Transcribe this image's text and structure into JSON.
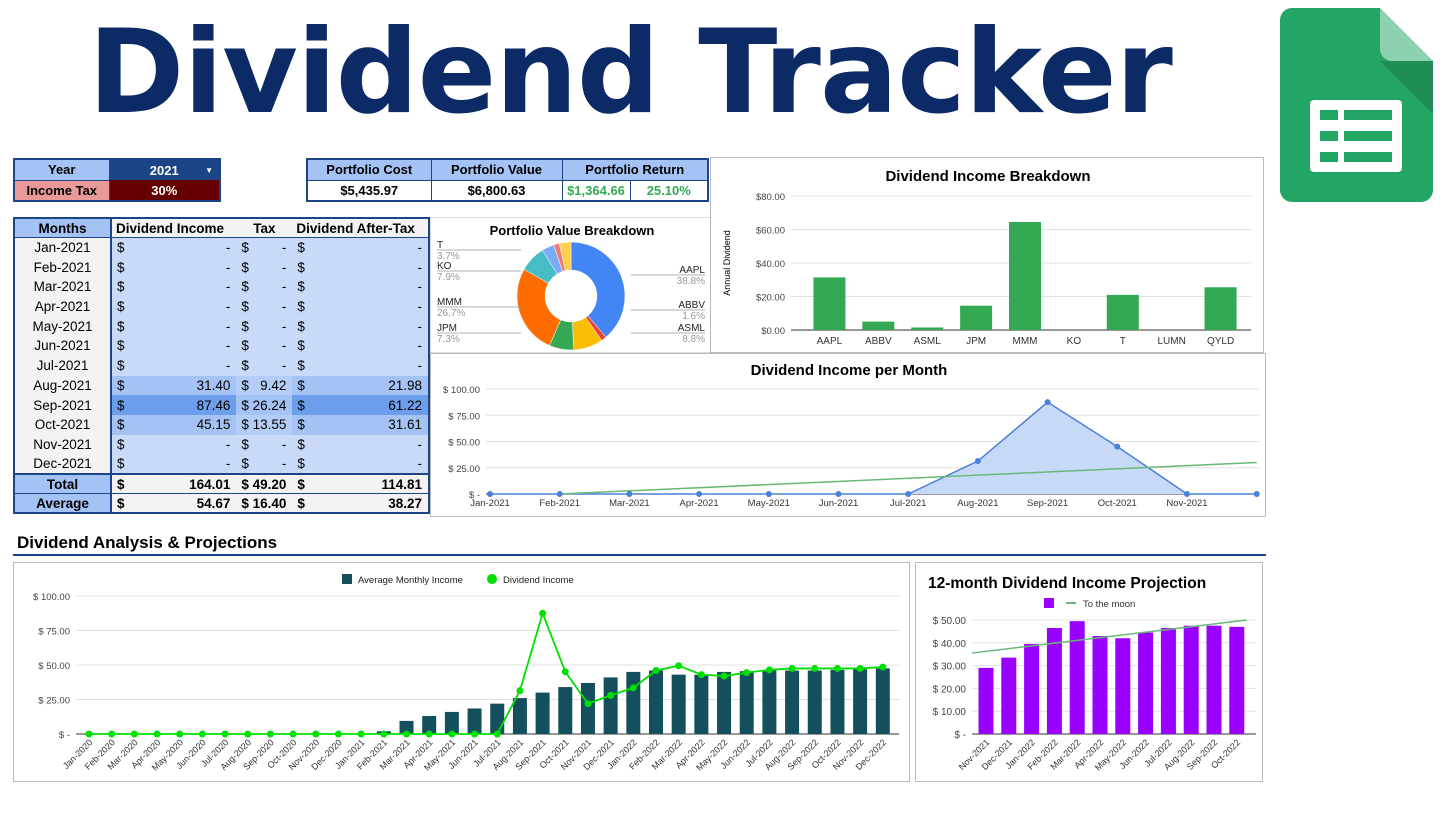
{
  "title": "Dividend Tracker",
  "settings": {
    "year_label": "Year",
    "year_value": "2021",
    "tax_label": "Income Tax",
    "tax_value": "30%"
  },
  "portfolio": {
    "cost_label": "Portfolio Cost",
    "cost": "$5,435.97",
    "value_label": "Portfolio Value",
    "value": "$6,800.63",
    "return_label": "Portfolio Return",
    "return_amount": "$1,364.66",
    "return_pct": "25.10%"
  },
  "months_table": {
    "headers": [
      "Months",
      "Dividend Income",
      "Tax",
      "Dividend After-Tax"
    ],
    "currency": "$",
    "rows": [
      [
        "Jan-2021",
        "-",
        "-",
        "-"
      ],
      [
        "Feb-2021",
        "-",
        "-",
        "-"
      ],
      [
        "Mar-2021",
        "-",
        "-",
        "-"
      ],
      [
        "Apr-2021",
        "-",
        "-",
        "-"
      ],
      [
        "May-2021",
        "-",
        "-",
        "-"
      ],
      [
        "Jun-2021",
        "-",
        "-",
        "-"
      ],
      [
        "Jul-2021",
        "-",
        "-",
        "-"
      ],
      [
        "Aug-2021",
        "31.40",
        "9.42",
        "21.98"
      ],
      [
        "Sep-2021",
        "87.46",
        "26.24",
        "61.22"
      ],
      [
        "Oct-2021",
        "45.15",
        "13.55",
        "31.61"
      ],
      [
        "Nov-2021",
        "-",
        "-",
        "-"
      ],
      [
        "Dec-2021",
        "-",
        "-",
        "-"
      ]
    ],
    "total": [
      "Total",
      "164.01",
      "49.20",
      "114.81"
    ],
    "average": [
      "Average",
      "54.67",
      "16.40",
      "38.27"
    ]
  },
  "section_heading": "Dividend Analysis & Projections",
  "colors": {
    "navy": "#0b2a66",
    "header_blue": "#a4c2f4",
    "cell_blue": "#c9daf8",
    "return_green": "#34a853",
    "tax_red": "#660000"
  },
  "chart_data": [
    {
      "id": "portfolio-value",
      "type": "pie",
      "donut": true,
      "title": "Portfolio Value Breakdown",
      "slices": [
        {
          "label": "AAPL",
          "pct": 38.8,
          "color": "#4285f4"
        },
        {
          "label": "ABBV",
          "pct": 1.6,
          "color": "#ea4335"
        },
        {
          "label": "ASML",
          "pct": 8.8,
          "color": "#fbbc04"
        },
        {
          "label": "JPM",
          "pct": 7.3,
          "color": "#34a853"
        },
        {
          "label": "MMM",
          "pct": 26.7,
          "color": "#ff6d01"
        },
        {
          "label": "KO",
          "pct": 7.9,
          "color": "#46bdc6"
        },
        {
          "label": "T",
          "pct": 3.7,
          "color": "#7baaf7"
        },
        {
          "label": "",
          "pct": 1.7,
          "color": "#f07b72"
        },
        {
          "label": "",
          "pct": 3.5,
          "color": "#fcd04f"
        }
      ]
    },
    {
      "id": "income-breakdown",
      "type": "bar",
      "title": "Dividend Income Breakdown",
      "ylabel": "Annual Dividend",
      "categories": [
        "AAPL",
        "ABBV",
        "ASML",
        "JPM",
        "MMM",
        "KO",
        "T",
        "LUMN",
        "QYLD"
      ],
      "values": [
        31.4,
        5,
        1.5,
        14.5,
        64.5,
        0,
        21,
        0,
        25.5
      ],
      "ylim": [
        0,
        80
      ],
      "yticks": [
        "$0.00",
        "$20.00",
        "$40.00",
        "$60.00",
        "$80.00"
      ],
      "color": "#34a853"
    },
    {
      "id": "income-per-month",
      "type": "area",
      "title": "Dividend Income per Month",
      "categories": [
        "Jan-2021",
        "Feb-2021",
        "Mar-2021",
        "Apr-2021",
        "May-2021",
        "Jun-2021",
        "Jul-2021",
        "Aug-2021",
        "Sep-2021",
        "Oct-2021",
        "Nov-2021",
        ""
      ],
      "values": [
        0,
        0,
        0,
        0,
        0,
        0,
        0,
        31.4,
        87.46,
        45.15,
        0,
        0
      ],
      "ylim": [
        0,
        100
      ],
      "yticks": [
        "$ -",
        "$ 25.00",
        "$ 50.00",
        "$ 75.00",
        "$ 100.00"
      ],
      "trendline": [
        -3,
        30
      ],
      "color": "#4a80d9",
      "trend_color": "#6ab877"
    },
    {
      "id": "analysis",
      "type": "bar+line",
      "categories": [
        "Jan-2020",
        "Feb-2020",
        "Mar-2020",
        "Apr-2020",
        "May-2020",
        "Jun-2020",
        "Jul-2020",
        "Aug-2020",
        "Sep-2020",
        "Oct-2020",
        "Nov-2020",
        "Dec-2020",
        "Jan-2021",
        "Feb-2021",
        "Mar-2021",
        "Apr-2021",
        "May-2021",
        "Jun-2021",
        "Jul-2021",
        "Aug-2021",
        "Sep-2021",
        "Oct-2021",
        "Nov-2021",
        "Dec-2021",
        "Jan-2022",
        "Feb-2022",
        "Mar-2022",
        "Apr-2022",
        "May-2022",
        "Jun-2022",
        "Jul-2022",
        "Aug-2022",
        "Sep-2022",
        "Oct-2022",
        "Nov-2022",
        "Dec-2022"
      ],
      "series": [
        {
          "name": "Average Monthly Income",
          "type": "bar",
          "color": "#134f5c",
          "values": [
            0,
            0,
            0,
            0,
            0,
            0,
            0,
            0,
            0,
            0,
            0,
            0,
            0,
            2,
            9.5,
            13,
            16,
            18.5,
            22,
            26,
            30,
            34,
            37,
            41,
            45,
            46,
            43,
            43,
            45,
            45.5,
            46,
            46,
            46,
            46.5,
            47,
            47.5
          ]
        },
        {
          "name": "Dividend Income",
          "type": "line",
          "color": "#00e000",
          "values": [
            0,
            0,
            0,
            0,
            0,
            0,
            0,
            0,
            0,
            0,
            0,
            0,
            0,
            0,
            0,
            0,
            0,
            0,
            0,
            31.4,
            87.46,
            45.15,
            22,
            28,
            33.5,
            46,
            49.5,
            43,
            42,
            44.5,
            46.5,
            47.5,
            47.5,
            47.5,
            47.5,
            48.5
          ]
        }
      ],
      "ylim": [
        0,
        100
      ],
      "yticks": [
        "$ -",
        "$ 25.00",
        "$ 50.00",
        "$ 75.00",
        "$ 100.00"
      ],
      "legend": "top"
    },
    {
      "id": "projection",
      "type": "bar",
      "title": "12-month Dividend Income Projection",
      "categories": [
        "Nov-2021",
        "Dec-2021",
        "Jan-2022",
        "Feb-2022",
        "Mar-2022",
        "Apr-2022",
        "May-2022",
        "Jun-2022",
        "Jul-2022",
        "Aug-2022",
        "Sep-2022",
        "Oct-2022"
      ],
      "values": [
        29,
        33.5,
        39.5,
        46.5,
        49.5,
        43,
        42,
        44.5,
        46.5,
        47.5,
        47.5,
        47
      ],
      "color": "#9900ff",
      "trendline": {
        "name": "To the moon",
        "start": 35.5,
        "end": 50,
        "color": "#6ab877"
      },
      "ylim": [
        0,
        50
      ],
      "yticks": [
        "$ -",
        "$ 10.00",
        "$ 20.00",
        "$ 30.00",
        "$ 40.00",
        "$ 50.00"
      ],
      "legend": "top"
    }
  ]
}
